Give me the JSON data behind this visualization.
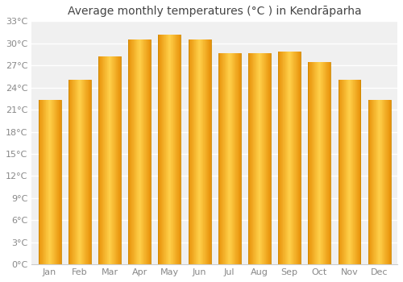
{
  "title": "Average monthly temperatures (°C ) in Kendrāparha",
  "months": [
    "Jan",
    "Feb",
    "Mar",
    "Apr",
    "May",
    "Jun",
    "Jul",
    "Aug",
    "Sep",
    "Oct",
    "Nov",
    "Dec"
  ],
  "values": [
    22.3,
    25.0,
    28.2,
    30.5,
    31.2,
    30.5,
    28.7,
    28.7,
    28.9,
    27.5,
    25.0,
    22.3
  ],
  "bar_color_left": "#E8920A",
  "bar_color_center": "#FFD04A",
  "bar_color_right": "#E8920A",
  "bar_edge_color": "#CC8800",
  "ylim": [
    0,
    33
  ],
  "yticks": [
    0,
    3,
    6,
    9,
    12,
    15,
    18,
    21,
    24,
    27,
    30,
    33
  ],
  "ytick_labels": [
    "0°C",
    "3°C",
    "6°C",
    "9°C",
    "12°C",
    "15°C",
    "18°C",
    "21°C",
    "24°C",
    "27°C",
    "30°C",
    "33°C"
  ],
  "background_color": "#ffffff",
  "plot_bg_color": "#f0f0f0",
  "grid_color": "#ffffff",
  "title_fontsize": 10,
  "tick_fontsize": 8,
  "tick_color": "#888888",
  "title_color": "#444444",
  "bar_width": 0.75,
  "n_gradient_strips": 40
}
